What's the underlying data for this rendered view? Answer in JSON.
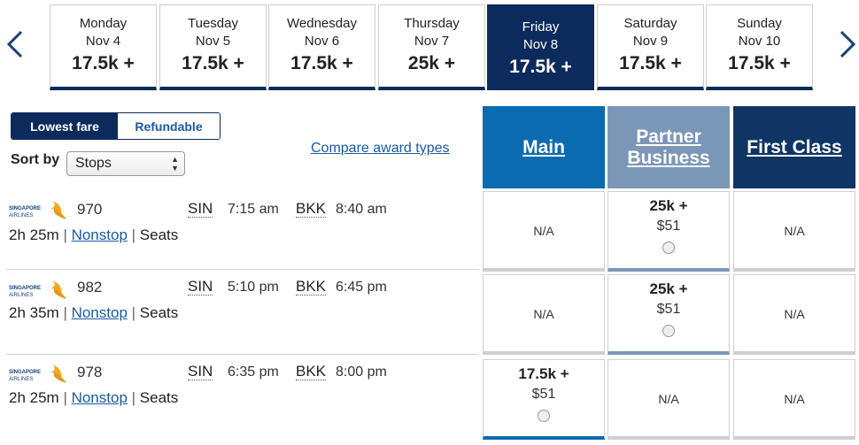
{
  "dates": [
    {
      "day": "Monday",
      "date": "Nov 4",
      "price": "17.5k +"
    },
    {
      "day": "Tuesday",
      "date": "Nov 5",
      "price": "17.5k +"
    },
    {
      "day": "Wednesday",
      "date": "Nov 6",
      "price": "17.5k +"
    },
    {
      "day": "Thursday",
      "date": "Nov 7",
      "price": "25k +"
    },
    {
      "day": "Friday",
      "date": "Nov 8",
      "price": "17.5k +"
    },
    {
      "day": "Saturday",
      "date": "Nov 9",
      "price": "17.5k +"
    },
    {
      "day": "Sunday",
      "date": "Nov 10",
      "price": "17.5k +"
    }
  ],
  "fare_toggle": {
    "lowest": "Lowest fare",
    "refundable": "Refundable"
  },
  "sort": {
    "label": "Sort by",
    "value": "Stops"
  },
  "compare_link": "Compare award types",
  "columns": {
    "main": "Main",
    "partner_line1": "Partner",
    "partner_line2": "Business",
    "first": "First Class"
  },
  "airline_logo": {
    "name": "SINGAPORE AIRLINES"
  },
  "flights": [
    {
      "number": "970",
      "origin": "SIN",
      "depart": "7:15 am",
      "dest": "BKK",
      "arrive": "8:40 am",
      "duration": "2h 25m",
      "stops": "Nonstop",
      "seats": "Seats",
      "main": {
        "na": "N/A"
      },
      "partner": {
        "price": "25k +",
        "tax": "$51"
      },
      "first": {
        "na": "N/A"
      }
    },
    {
      "number": "982",
      "origin": "SIN",
      "depart": "5:10 pm",
      "dest": "BKK",
      "arrive": "6:45 pm",
      "duration": "2h 35m",
      "stops": "Nonstop",
      "seats": "Seats",
      "main": {
        "na": "N/A"
      },
      "partner": {
        "price": "25k +",
        "tax": "$51"
      },
      "first": {
        "na": "N/A"
      }
    },
    {
      "number": "978",
      "origin": "SIN",
      "depart": "6:35 pm",
      "dest": "BKK",
      "arrive": "8:00 pm",
      "duration": "2h 25m",
      "stops": "Nonstop",
      "seats": "Seats",
      "main": {
        "price": "17.5k +",
        "tax": "$51"
      },
      "partner": {
        "na": "N/A"
      },
      "first": {
        "na": "N/A"
      }
    }
  ],
  "colors": {
    "navy": "#0d2a5c",
    "main_blue": "#0b6bb0",
    "partner_gray_blue": "#7b97b8",
    "first_navy": "#0f3564",
    "link_blue": "#1a5aa3",
    "logo_gold": "#f0a81e"
  }
}
